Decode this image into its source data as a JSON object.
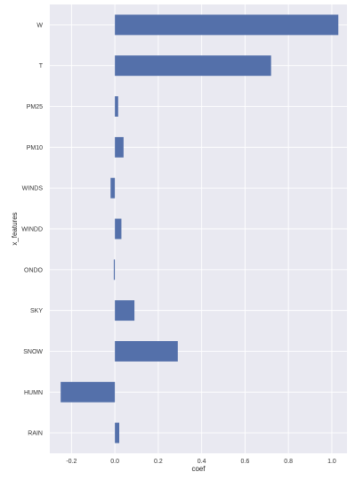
{
  "chart_data": {
    "type": "bar",
    "orientation": "horizontal",
    "categories": [
      "W",
      "T",
      "PM25",
      "PM10",
      "WINDS",
      "WINDD",
      "ONDO",
      "SKY",
      "SNOW",
      "HUMN",
      "RAIN"
    ],
    "values": [
      1.03,
      0.72,
      0.015,
      0.04,
      -0.02,
      0.03,
      -0.005,
      0.09,
      0.29,
      -0.25,
      0.02
    ],
    "xlabel": "coef",
    "ylabel": "x_features",
    "xlim": [
      -0.3,
      1.07
    ],
    "xticks": [
      -0.2,
      0.0,
      0.2,
      0.4,
      0.6,
      0.8,
      1.0
    ],
    "xtick_labels": [
      "-0.2",
      "0.0",
      "0.2",
      "0.4",
      "0.6",
      "0.8",
      "1.0"
    ],
    "grid": true,
    "colors": {
      "bar": "#5470aa",
      "plot_bg": "#e9e9f1",
      "grid": "#ffffff"
    }
  }
}
